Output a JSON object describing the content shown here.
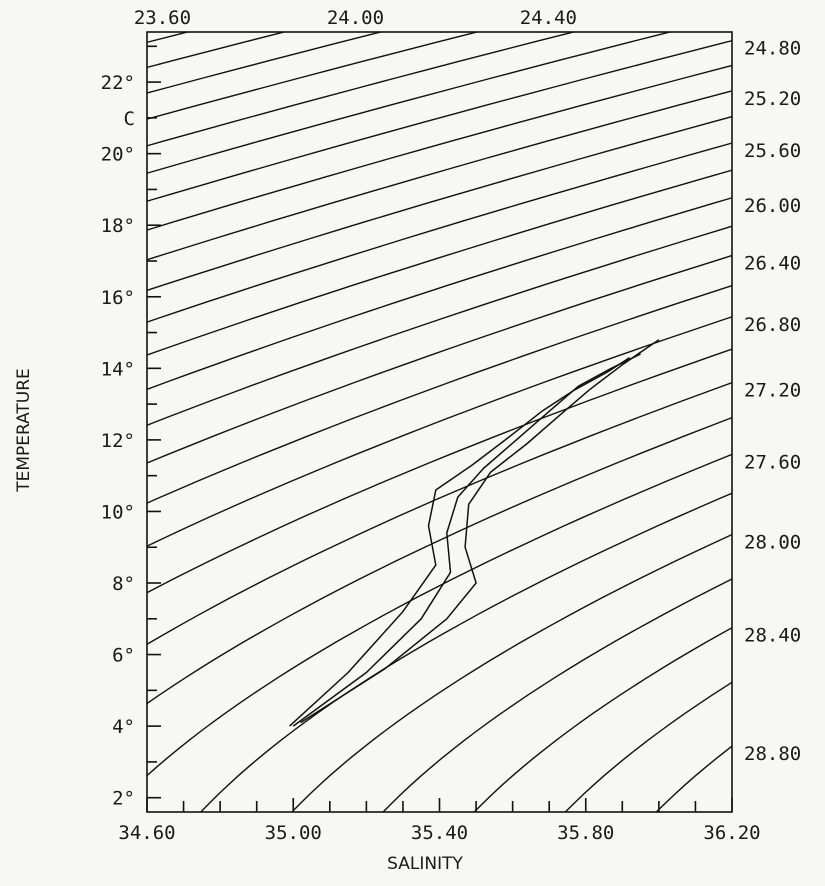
{
  "chart_data": {
    "type": "line",
    "xlabel": "SALINITY",
    "ylabel": "TEMPERATURE",
    "xlim": [
      34.6,
      36.2
    ],
    "ylim": [
      1.6,
      23.4
    ],
    "x_tick_labels": [
      "34.60",
      "35.00",
      "35.40",
      "35.80",
      "36.20"
    ],
    "x_tick_values": [
      34.6,
      35.0,
      35.4,
      35.8,
      36.2
    ],
    "x_minor_step": 0.1,
    "y_tick_labels": [
      "2°",
      "4°",
      "6°",
      "8°",
      "10°",
      "12°",
      "14°",
      "16°",
      "18°",
      "20°",
      "C",
      "22°"
    ],
    "y_tick_values": [
      2,
      4,
      6,
      8,
      10,
      12,
      14,
      16,
      18,
      20,
      21,
      22
    ],
    "y_minor_step": 1,
    "isopycnal_unit_marker": "C",
    "isopycnal_step": 0.2,
    "isopycnals_top_labels": [
      "23.60",
      "24.00",
      "24.40"
    ],
    "isopycnals_right_labels": [
      "24.80",
      "25.20",
      "25.60",
      "26.00",
      "26.40",
      "26.80",
      "27.20",
      "27.60",
      "28.00",
      "28.40",
      "28.80"
    ],
    "series": [
      {
        "x": [
          34.99,
          35.15,
          35.3,
          35.39,
          35.37,
          35.39,
          35.49,
          35.58,
          35.68,
          35.77,
          35.86,
          35.92
        ],
        "y": [
          4.0,
          5.5,
          7.2,
          8.5,
          9.6,
          10.6,
          11.3,
          12.0,
          12.8,
          13.4,
          13.9,
          14.3
        ]
      },
      {
        "x": [
          35.0,
          35.2,
          35.35,
          35.43,
          35.42,
          35.45,
          35.52,
          35.61,
          35.7,
          35.78,
          35.87,
          35.95
        ],
        "y": [
          4.0,
          5.5,
          7.0,
          8.3,
          9.4,
          10.4,
          11.2,
          12.0,
          12.8,
          13.5,
          14.0,
          14.4
        ]
      },
      {
        "x": [
          35.02,
          35.25,
          35.42,
          35.5,
          35.47,
          35.48,
          35.54,
          35.64,
          35.73,
          35.81,
          35.9,
          36.0
        ],
        "y": [
          4.1,
          5.6,
          7.0,
          8.0,
          9.0,
          10.2,
          11.1,
          11.9,
          12.7,
          13.4,
          14.1,
          14.8
        ]
      }
    ]
  }
}
